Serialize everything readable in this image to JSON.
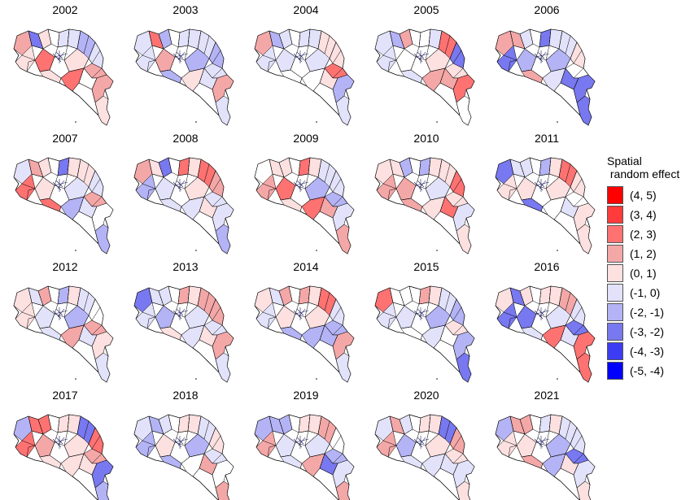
{
  "figure": {
    "years": [
      "2002",
      "2003",
      "2004",
      "2005",
      "2006",
      "2007",
      "2008",
      "2009",
      "2010",
      "2011",
      "2012",
      "2013",
      "2014",
      "2015",
      "2016",
      "2017",
      "2018",
      "2019",
      "2020",
      "2021"
    ]
  },
  "legend": {
    "title": "Spatial\n random effect",
    "items": [
      {
        "label": "(4, 5)",
        "color": "#ff0000"
      },
      {
        "label": "(3, 4)",
        "color": "#ff3b3b"
      },
      {
        "label": "(2, 3)",
        "color": "#ff7272"
      },
      {
        "label": "(1, 2)",
        "color": "#f4a7a7"
      },
      {
        "label": "(0, 1)",
        "color": "#fde0e0"
      },
      {
        "label": "(-1, 0)",
        "color": "#e2e2fb"
      },
      {
        "label": "(-2, -1)",
        "color": "#b3b3f5"
      },
      {
        "label": "(-3, -2)",
        "color": "#7878f0"
      },
      {
        "label": "(-4, -3)",
        "color": "#3c3cf5"
      },
      {
        "label": "(-5, -4)",
        "color": "#0000ff"
      }
    ]
  }
}
